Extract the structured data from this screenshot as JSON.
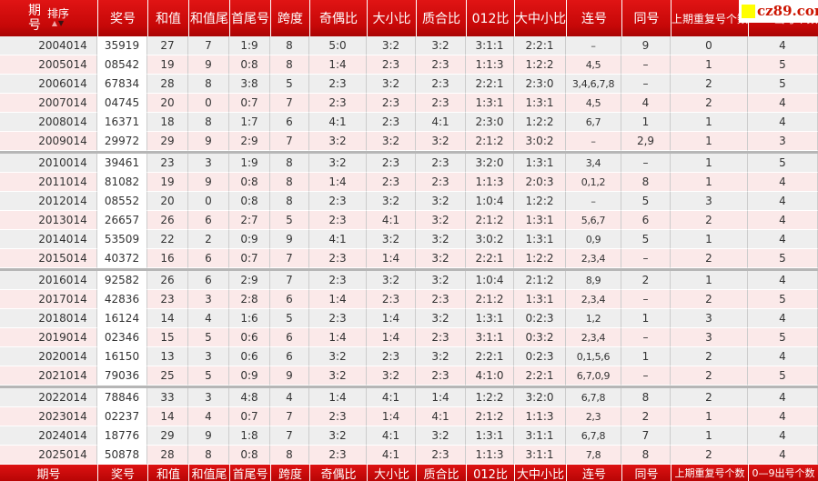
{
  "watermark": {
    "text": "cz89.com",
    "accent_color": "#ffff00",
    "text_color": "#cc1400"
  },
  "table": {
    "sort_label": "排序",
    "sort_up_icon": "▲",
    "sort_down_icon": "▼",
    "period_header_lines": {
      "line1": "期",
      "line2": "号"
    },
    "columns": [
      "期号",
      "奖号",
      "和值",
      "和值尾",
      "首尾号",
      "跨度",
      "奇偶比",
      "大小比",
      "质合比",
      "012比",
      "大中小比",
      "连号",
      "同号",
      "上期重复号个数",
      "0—9出号个数"
    ],
    "rows": [
      [
        "2004014",
        "35919",
        "27",
        "7",
        "1:9",
        "8",
        "5:0",
        "3:2",
        "3:2",
        "3:1:1",
        "2:2:1",
        "–",
        "9",
        "0",
        "4"
      ],
      [
        "2005014",
        "08542",
        "19",
        "9",
        "0:8",
        "8",
        "1:4",
        "2:3",
        "2:3",
        "1:1:3",
        "1:2:2",
        "4,5",
        "–",
        "1",
        "5"
      ],
      [
        "2006014",
        "67834",
        "28",
        "8",
        "3:8",
        "5",
        "2:3",
        "3:2",
        "2:3",
        "2:2:1",
        "2:3:0",
        "3,4,6,7,8",
        "–",
        "2",
        "5"
      ],
      [
        "2007014",
        "04745",
        "20",
        "0",
        "0:7",
        "7",
        "2:3",
        "2:3",
        "2:3",
        "1:3:1",
        "1:3:1",
        "4,5",
        "4",
        "2",
        "4"
      ],
      [
        "2008014",
        "16371",
        "18",
        "8",
        "1:7",
        "6",
        "4:1",
        "2:3",
        "4:1",
        "2:3:0",
        "1:2:2",
        "6,7",
        "1",
        "1",
        "4"
      ],
      [
        "2009014",
        "29972",
        "29",
        "9",
        "2:9",
        "7",
        "3:2",
        "3:2",
        "3:2",
        "2:1:2",
        "3:0:2",
        "–",
        "2,9",
        "1",
        "3"
      ],
      [
        "2010014",
        "39461",
        "23",
        "3",
        "1:9",
        "8",
        "3:2",
        "2:3",
        "2:3",
        "3:2:0",
        "1:3:1",
        "3,4",
        "–",
        "1",
        "5"
      ],
      [
        "2011014",
        "81082",
        "19",
        "9",
        "0:8",
        "8",
        "1:4",
        "2:3",
        "2:3",
        "1:1:3",
        "2:0:3",
        "0,1,2",
        "8",
        "1",
        "4"
      ],
      [
        "2012014",
        "08552",
        "20",
        "0",
        "0:8",
        "8",
        "2:3",
        "3:2",
        "3:2",
        "1:0:4",
        "1:2:2",
        "–",
        "5",
        "3",
        "4"
      ],
      [
        "2013014",
        "26657",
        "26",
        "6",
        "2:7",
        "5",
        "2:3",
        "4:1",
        "3:2",
        "2:1:2",
        "1:3:1",
        "5,6,7",
        "6",
        "2",
        "4"
      ],
      [
        "2014014",
        "53509",
        "22",
        "2",
        "0:9",
        "9",
        "4:1",
        "3:2",
        "3:2",
        "3:0:2",
        "1:3:1",
        "0,9",
        "5",
        "1",
        "4"
      ],
      [
        "2015014",
        "40372",
        "16",
        "6",
        "0:7",
        "7",
        "2:3",
        "1:4",
        "3:2",
        "2:2:1",
        "1:2:2",
        "2,3,4",
        "–",
        "2",
        "5"
      ],
      [
        "2016014",
        "92582",
        "26",
        "6",
        "2:9",
        "7",
        "2:3",
        "3:2",
        "3:2",
        "1:0:4",
        "2:1:2",
        "8,9",
        "2",
        "1",
        "4"
      ],
      [
        "2017014",
        "42836",
        "23",
        "3",
        "2:8",
        "6",
        "1:4",
        "2:3",
        "2:3",
        "2:1:2",
        "1:3:1",
        "2,3,4",
        "–",
        "2",
        "5"
      ],
      [
        "2018014",
        "16124",
        "14",
        "4",
        "1:6",
        "5",
        "2:3",
        "1:4",
        "3:2",
        "1:3:1",
        "0:2:3",
        "1,2",
        "1",
        "3",
        "4"
      ],
      [
        "2019014",
        "02346",
        "15",
        "5",
        "0:6",
        "6",
        "1:4",
        "1:4",
        "2:3",
        "3:1:1",
        "0:3:2",
        "2,3,4",
        "–",
        "3",
        "5"
      ],
      [
        "2020014",
        "16150",
        "13",
        "3",
        "0:6",
        "6",
        "3:2",
        "2:3",
        "3:2",
        "2:2:1",
        "0:2:3",
        "0,1,5,6",
        "1",
        "2",
        "4"
      ],
      [
        "2021014",
        "79036",
        "25",
        "5",
        "0:9",
        "9",
        "3:2",
        "3:2",
        "2:3",
        "4:1:0",
        "2:2:1",
        "6,7,0,9",
        "–",
        "2",
        "5"
      ],
      [
        "2022014",
        "78846",
        "33",
        "3",
        "4:8",
        "4",
        "1:4",
        "4:1",
        "1:4",
        "1:2:2",
        "3:2:0",
        "6,7,8",
        "8",
        "2",
        "4"
      ],
      [
        "2023014",
        "02237",
        "14",
        "4",
        "0:7",
        "7",
        "2:3",
        "1:4",
        "4:1",
        "2:1:2",
        "1:1:3",
        "2,3",
        "2",
        "1",
        "4"
      ],
      [
        "2024014",
        "18776",
        "29",
        "9",
        "1:8",
        "7",
        "3:2",
        "4:1",
        "3:2",
        "1:3:1",
        "3:1:1",
        "6,7,8",
        "7",
        "1",
        "4"
      ],
      [
        "2025014",
        "50878",
        "28",
        "8",
        "0:8",
        "8",
        "2:3",
        "4:1",
        "2:3",
        "1:1:3",
        "3:1:1",
        "7,8",
        "8",
        "2",
        "4"
      ]
    ],
    "group_breaks_after": [
      5,
      11,
      17
    ],
    "colors": {
      "header_red": "#cc0b0b",
      "row_gray": "#eeeeee",
      "row_pink": "#fbe9e9",
      "prize_column_white": "#ffffff",
      "separator_gray": "#b6b6b6"
    }
  }
}
